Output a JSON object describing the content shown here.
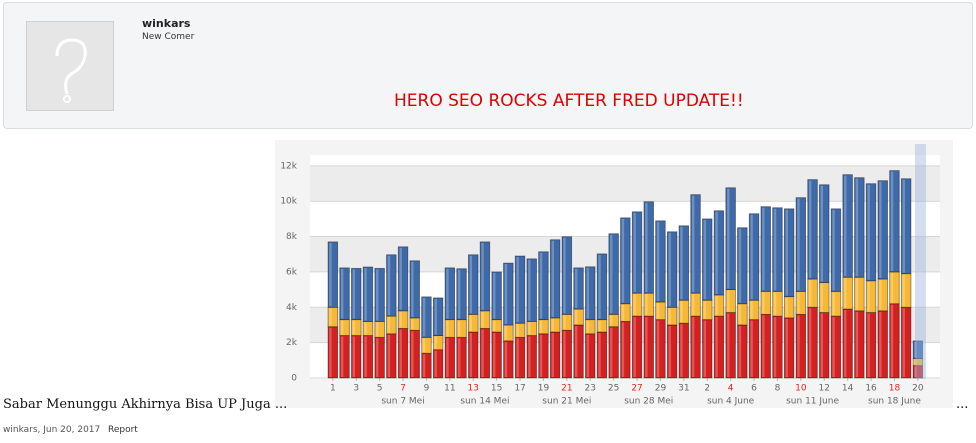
{
  "post": {
    "username": "winkars",
    "user_title": "New Comer",
    "headline": "HERO SEO ROCKS AFTER FRED UPDATE!!",
    "caption": "Sabar Menunggu Akhirnya Bisa UP Juga ...",
    "more": "...",
    "meta": "winkars, Jun 20, 2017",
    "report": "Report"
  },
  "chart_data": {
    "type": "stacked_bar",
    "categories": [
      "1",
      null,
      "3",
      null,
      "5",
      null,
      "7",
      null,
      "9",
      null,
      "11",
      null,
      "13",
      null,
      "15",
      null,
      "17",
      null,
      "19",
      null,
      "21",
      null,
      "23",
      null,
      "25",
      null,
      "27",
      null,
      "29",
      null,
      "31",
      null,
      "2",
      null,
      "4",
      null,
      "6",
      null,
      "8",
      null,
      "10",
      null,
      "12",
      null,
      "14",
      null,
      "16",
      null,
      "18",
      null,
      "20"
    ],
    "highlight_categories": [
      "7",
      "13",
      "21",
      "27",
      "4",
      "10",
      "18"
    ],
    "highlight_color": "#e8251b",
    "x_annotations": [
      "sun 7 Mei",
      "sun 14 Mei",
      "sun 21 Mei",
      "sun 28 Mei",
      "sun 4 June",
      "sun 11 June",
      "sun 18 June"
    ],
    "series": [
      {
        "color": "#d42020",
        "values": [
          2900,
          2400,
          2400,
          2400,
          2300,
          2500,
          2800,
          2700,
          1400,
          1600,
          2300,
          2300,
          2600,
          2800,
          2600,
          2100,
          2300,
          2400,
          2500,
          2600,
          2700,
          3000,
          2500,
          2600,
          2900,
          3200,
          3500,
          3500,
          3300,
          3000,
          3100,
          3500,
          3300,
          3500,
          3700,
          3000,
          3300,
          3600,
          3500,
          3400,
          3600,
          4000,
          3700,
          3500,
          3900,
          3800,
          3700,
          3800,
          4200,
          4000,
          700
        ]
      },
      {
        "color": "#f7b835",
        "values": [
          1100,
          900,
          900,
          800,
          900,
          1000,
          1000,
          700,
          900,
          800,
          1000,
          1000,
          1000,
          1000,
          700,
          900,
          800,
          800,
          800,
          800,
          900,
          900,
          800,
          700,
          700,
          1000,
          1300,
          1300,
          1000,
          1000,
          1300,
          1300,
          1100,
          1200,
          1300,
          1200,
          1100,
          1300,
          1400,
          1200,
          1300,
          1600,
          1700,
          1400,
          1800,
          1900,
          1800,
          1800,
          1800,
          1900,
          400
        ]
      },
      {
        "color": "#3f6aa9",
        "values": [
          3700,
          2930,
          2900,
          3080,
          3000,
          3470,
          3620,
          3230,
          2290,
          2130,
          2930,
          2880,
          3370,
          3900,
          2700,
          3500,
          3800,
          3540,
          3840,
          4420,
          4390,
          2330,
          2990,
          3720,
          4560,
          4860,
          4600,
          5170,
          4590,
          4270,
          4210,
          5570,
          4600,
          4760,
          5760,
          4300,
          4890,
          4790,
          4730,
          4970,
          5300,
          5620,
          5530,
          4670,
          5800,
          5630,
          5490,
          5560,
          5730,
          5370,
          1000
        ]
      }
    ],
    "ylim": [
      0,
      12500
    ],
    "yticks": [
      0,
      {
        "value": 2000,
        "label": "2k"
      },
      {
        "value": 4000,
        "label": "4k"
      },
      {
        "value": 6000,
        "label": "6k"
      },
      {
        "value": 8000,
        "label": "8k"
      },
      {
        "value": 10000,
        "label": "10k"
      },
      {
        "value": 12000,
        "label": "12k"
      }
    ],
    "grid": true
  }
}
